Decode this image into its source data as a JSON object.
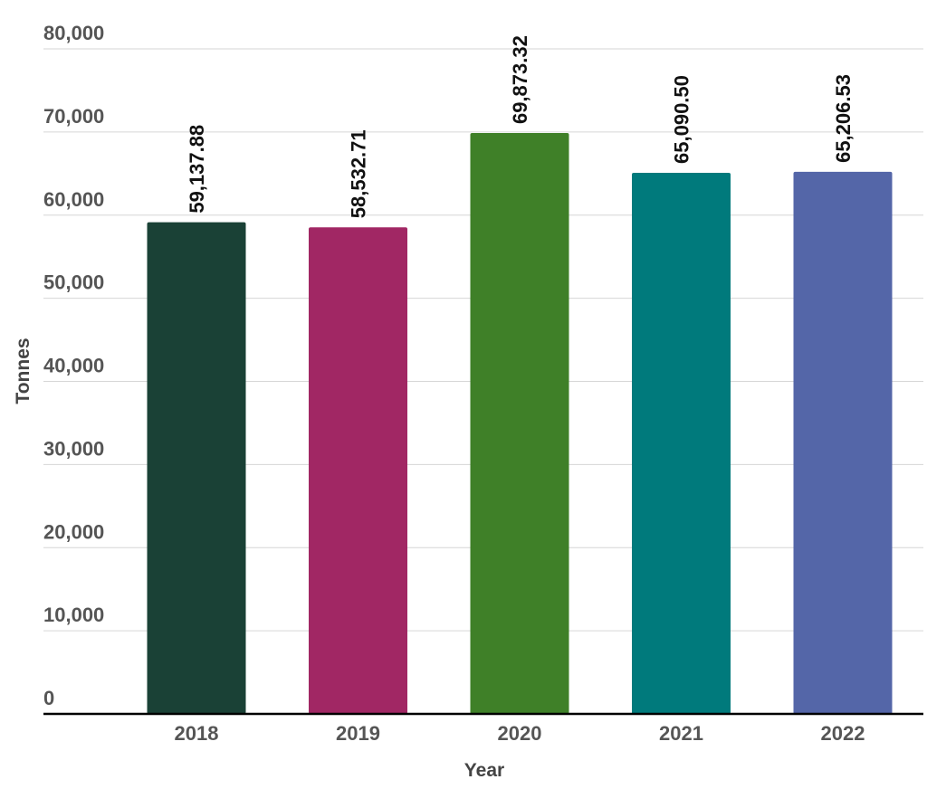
{
  "chart_data": {
    "type": "bar",
    "categories": [
      "2018",
      "2019",
      "2020",
      "2021",
      "2022"
    ],
    "values": [
      59137.88,
      58532.71,
      69873.32,
      65090.5,
      65206.53
    ],
    "data_labels": [
      "59,137.88",
      "58,532.71",
      "69,873.32",
      "65,090.50",
      "65,206.53"
    ],
    "colors": [
      "#1a4136",
      "#a12764",
      "#3f8028",
      "#007a7c",
      "#5466a8"
    ],
    "xlabel": "Year",
    "ylabel": "Tonnes",
    "ylim": [
      0,
      80000
    ],
    "yticks": [
      0,
      10000,
      20000,
      30000,
      40000,
      50000,
      60000,
      70000,
      80000
    ],
    "ytick_labels": [
      "0",
      "10,000",
      "20,000",
      "30,000",
      "40,000",
      "50,000",
      "60,000",
      "70,000",
      "80,000"
    ],
    "grid": true,
    "legend": "none"
  }
}
